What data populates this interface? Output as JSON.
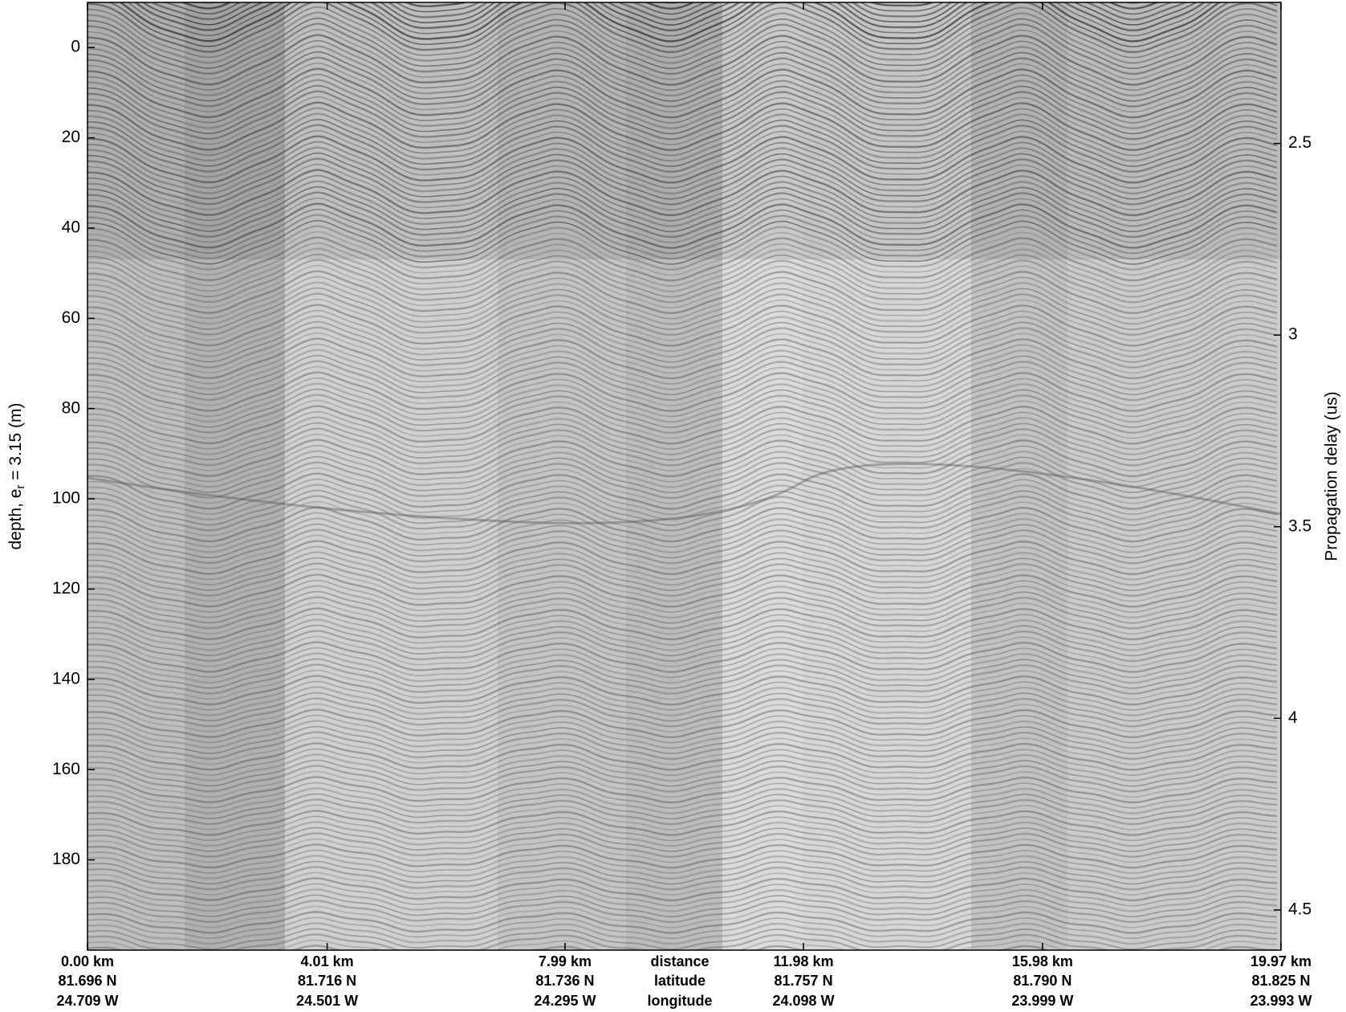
{
  "chart_data": {
    "type": "echogram",
    "ylabel": "depth, e",
    "ylabel_subscript": "r",
    "ylabel_rest": " = 3.15 (m)",
    "y2label": "Propagation delay (us)",
    "ylim": [
      -10,
      200
    ],
    "yticks": [
      0,
      20,
      40,
      60,
      80,
      100,
      120,
      140,
      160,
      180
    ],
    "y_inverted": true,
    "y2lim": [
      2.132,
      4.605
    ],
    "y2ticks": [
      2.5,
      3,
      3.5,
      4,
      4.5
    ],
    "xlim": [
      0,
      19.97
    ],
    "xticks": [
      {
        "value": 0,
        "label": "0.00 km"
      },
      {
        "value": 4.01,
        "label": "4.01 km"
      },
      {
        "value": 7.99,
        "label": "7.99 km"
      },
      {
        "value": 11.98,
        "label": "11.98 km"
      },
      {
        "value": 15.98,
        "label": "15.98 km"
      },
      {
        "value": 19.97,
        "label": "19.97 km"
      }
    ],
    "xtick_latitudes": [
      "81.696 N",
      "81.716 N",
      "81.736 N",
      "81.757 N",
      "81.790 N",
      "81.825 N"
    ],
    "xtick_longitudes": [
      "24.709 W",
      "24.501 W",
      "24.295 W",
      "24.098 W",
      "23.999 W",
      "23.993 W"
    ],
    "xrow_titles": [
      "distance",
      "latitude",
      "longitude"
    ]
  }
}
